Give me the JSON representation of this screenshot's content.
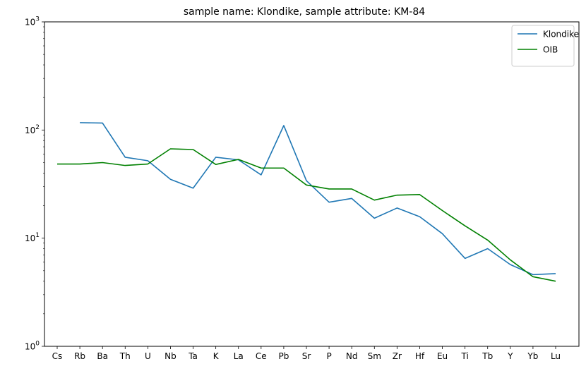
{
  "chart_data": {
    "type": "line",
    "title": "sample name: Klondike, sample attribute: KM-84",
    "xlabel": "",
    "ylabel": "",
    "yscale": "log",
    "ylim": [
      1,
      1000
    ],
    "y_ticks": [
      {
        "value": 1,
        "base": "10",
        "exp": "0"
      },
      {
        "value": 10,
        "base": "10",
        "exp": "1"
      },
      {
        "value": 100,
        "base": "10",
        "exp": "2"
      },
      {
        "value": 1000,
        "base": "10",
        "exp": "3"
      }
    ],
    "categories": [
      "Cs",
      "Rb",
      "Ba",
      "Th",
      "U",
      "Nb",
      "Ta",
      "K",
      "La",
      "Ce",
      "Pb",
      "Sr",
      "P",
      "Nd",
      "Sm",
      "Zr",
      "Hf",
      "Eu",
      "Ti",
      "Tb",
      "Y",
      "Yb",
      "Lu"
    ],
    "legend_position": "top-right",
    "grid": false,
    "series": [
      {
        "name": "Klondike",
        "color": "#1f77b4",
        "values": [
          null,
          117,
          116,
          56,
          52,
          35,
          29,
          56,
          53,
          38.5,
          110,
          34,
          21.5,
          23.3,
          15.3,
          19,
          15.8,
          11,
          6.5,
          8,
          5.7,
          4.6,
          4.7
        ]
      },
      {
        "name": "OIB",
        "color": "#008000",
        "values": [
          48.5,
          48.5,
          50,
          47,
          48.5,
          67,
          66,
          48,
          53.5,
          44.5,
          44.5,
          31,
          28.5,
          28.5,
          22.5,
          25,
          25.3,
          18,
          13,
          9.6,
          6.3,
          4.4,
          4.0
        ]
      }
    ]
  }
}
